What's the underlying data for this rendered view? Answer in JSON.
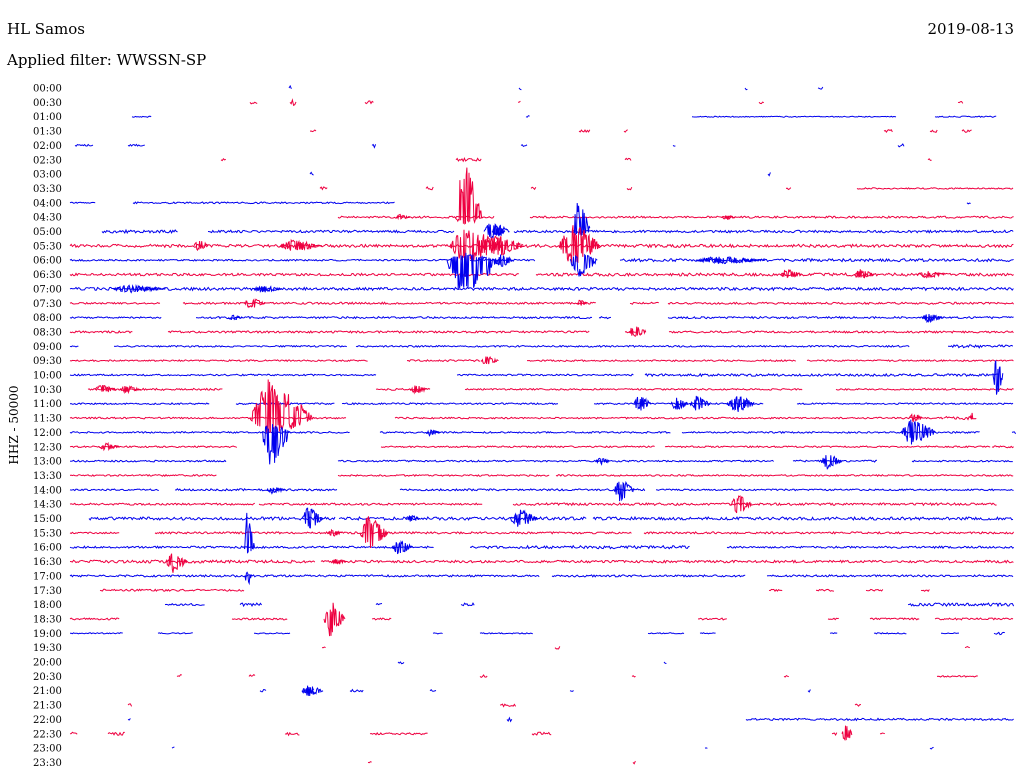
{
  "header": {
    "station": "HL Samos",
    "date": "2019-08-13",
    "filter": "Applied filter: WWSSN-SP"
  },
  "chart_data": {
    "type": "line",
    "ylabel": "HHZ - 50000",
    "colors": [
      "#0000ee",
      "#ee0040"
    ],
    "rows": [
      "00:00",
      "00:30",
      "01:00",
      "01:30",
      "02:00",
      "02:30",
      "03:00",
      "03:30",
      "04:00",
      "04:30",
      "05:00",
      "05:30",
      "06:00",
      "06:30",
      "07:00",
      "07:30",
      "08:00",
      "08:30",
      "09:00",
      "09:30",
      "10:00",
      "10:30",
      "11:00",
      "11:30",
      "12:00",
      "12:30",
      "13:00",
      "13:30",
      "14:00",
      "14:30",
      "15:00",
      "15:30",
      "16:00",
      "16:30",
      "17:00",
      "17:30",
      "18:00",
      "18:30",
      "19:00",
      "19:30",
      "20:00",
      "20:30",
      "21:00",
      "21:30",
      "22:00",
      "22:30",
      "23:00",
      "23:30"
    ]
  }
}
